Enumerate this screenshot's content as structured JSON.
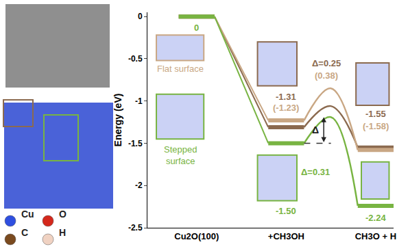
{
  "chart_data": {
    "type": "energy_diagram",
    "y_label": "Energy (eV)",
    "categories": [
      "Cu2O(100)",
      "+CH3OH",
      "CH3O + H"
    ],
    "ylim": [
      -2.5,
      0.05
    ],
    "yticks": [
      0,
      -0.5,
      -1,
      -1.5,
      -2,
      -2.5
    ],
    "data_labels": true,
    "series": [
      {
        "name": "Flat surface",
        "color": "#8b6a4f",
        "values": [
          0,
          -1.31,
          -1.55
        ],
        "value_labels": [
          null,
          "-1.31",
          "-1.55"
        ],
        "barrier": 0.25,
        "barrier_label": "Δ=0.25"
      },
      {
        "color": "#c9a784",
        "values": [
          0,
          -1.23,
          -1.58
        ],
        "value_labels": [
          null,
          "(-1.23)",
          "(-1.58)"
        ],
        "barrier": 0.38,
        "barrier_label": "(0.38)"
      },
      {
        "name": "Stepped surface",
        "color": "#78b442",
        "values": [
          0,
          -1.5,
          -2.24
        ],
        "value_labels": [
          "0",
          "-1.50",
          "-2.24"
        ],
        "barrier": 0.31,
        "barrier_label": "Δ=0.31"
      }
    ],
    "annotations": [
      {
        "text": "Δ",
        "series": 2
      }
    ],
    "element_legend": [
      {
        "label": "Cu",
        "color": "#2f4fe0"
      },
      {
        "label": "O",
        "color": "#d4281c"
      },
      {
        "label": "C",
        "color": "#7a4a1f"
      },
      {
        "label": "H",
        "color": "#f0d2c2"
      }
    ]
  }
}
